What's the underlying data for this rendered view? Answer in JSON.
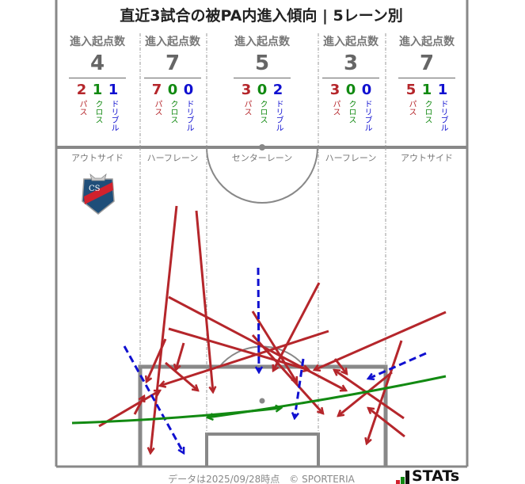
{
  "title": "直近3試合の被PA内進入傾向 | 5レーン別",
  "colors": {
    "pass": "#b5262b",
    "cross": "#128a12",
    "dribble": "#1010d0",
    "pitch_line": "#888888"
  },
  "lanes": [
    {
      "name": "アウトサイド",
      "header": "進入起点数",
      "total": "4",
      "pass": "2",
      "cross": "1",
      "dribble": "1"
    },
    {
      "name": "ハーフレーン",
      "header": "進入起点数",
      "total": "7",
      "pass": "7",
      "cross": "0",
      "dribble": "0"
    },
    {
      "name": "センターレーン",
      "header": "進入起点数",
      "total": "5",
      "pass": "3",
      "cross": "0",
      "dribble": "2"
    },
    {
      "name": "ハーフレーン",
      "header": "進入起点数",
      "total": "3",
      "pass": "3",
      "cross": "0",
      "dribble": "0"
    },
    {
      "name": "アウトサイド",
      "header": "進入起点数",
      "total": "7",
      "pass": "5",
      "cross": "1",
      "dribble": "1"
    }
  ],
  "type_labels": {
    "pass": "パス",
    "cross": "クロス",
    "dribble": "ドリブル"
  },
  "footer": "データは2025/09/28時点　© SPORTERIA",
  "brand": "STATs",
  "team_logo": "CS"
}
